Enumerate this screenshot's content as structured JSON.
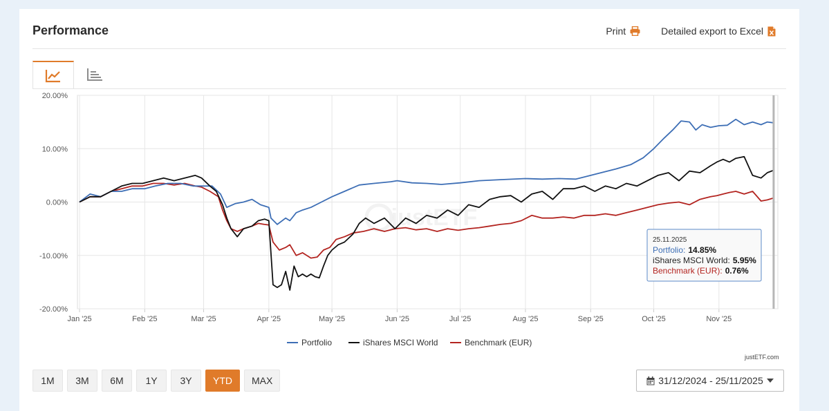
{
  "header": {
    "title": "Performance",
    "print_label": "Print",
    "export_label": "Detailed export to Excel"
  },
  "ranges": [
    "1M",
    "3M",
    "6M",
    "1Y",
    "3Y",
    "YTD",
    "MAX"
  ],
  "active_range": "YTD",
  "date_range": "31/12/2024 - 25/11/2025",
  "credit": "justETF.com",
  "watermark": "justETF",
  "colors": {
    "accent": "#e07b2a",
    "portfolio": "#3d6eb5",
    "msci": "#111111",
    "benchmark": "#b32420"
  },
  "tooltip": {
    "date": "25.11.2025",
    "rows": [
      {
        "label": "Portfolio:",
        "value": "14.85%"
      },
      {
        "label": "iShares MSCI World:",
        "value": "5.95%"
      },
      {
        "label": "Benchmark (EUR):",
        "value": "0.76%"
      }
    ]
  },
  "chart_data": {
    "type": "line",
    "title": "",
    "xlabel": "",
    "ylabel": "",
    "ylim": [
      -20,
      20
    ],
    "y_ticks": [
      "20.00%",
      "10.00%",
      "0.00%",
      "-10.00%",
      "-20.00%"
    ],
    "y_tick_values": [
      20,
      10,
      0,
      -10,
      -20
    ],
    "x_ticks": [
      "Jan '25",
      "Feb '25",
      "Mar '25",
      "Apr '25",
      "May '25",
      "Jun '25",
      "Jul '25",
      "Aug '25",
      "Sep '25",
      "Oct '25",
      "Nov '25"
    ],
    "x_tick_days": [
      0,
      31,
      59,
      90,
      120,
      151,
      181,
      212,
      243,
      273,
      304
    ],
    "xlim": [
      -1,
      332
    ],
    "legend_position": "bottom",
    "series": [
      {
        "name": "Portfolio",
        "color": "#3d6eb5",
        "x": [
          0,
          5,
          10,
          15,
          20,
          25,
          31,
          36,
          42,
          48,
          54,
          58,
          63,
          67,
          70,
          74,
          78,
          82,
          86,
          90,
          91,
          94,
          98,
          100,
          103,
          106,
          110,
          115,
          120,
          126,
          133,
          140,
          148,
          151,
          158,
          165,
          172,
          181,
          190,
          200,
          212,
          220,
          228,
          236,
          243,
          248,
          255,
          262,
          268,
          273,
          278,
          282,
          286,
          290,
          293,
          296,
          300,
          304,
          308,
          312,
          316,
          320,
          324,
          327,
          330
        ],
        "y": [
          0,
          1.5,
          1,
          2,
          2,
          2.5,
          2.5,
          3,
          3.5,
          3.5,
          3,
          3,
          3,
          1.5,
          -1,
          -0.3,
          0,
          0.5,
          -0.5,
          -1,
          -3,
          -4.2,
          -3,
          -3.5,
          -2,
          -1.5,
          -1,
          0,
          1,
          2,
          3.2,
          3.5,
          3.8,
          4,
          3.6,
          3.5,
          3.3,
          3.6,
          4,
          4.2,
          4.4,
          4.3,
          4.4,
          4.3,
          5,
          5.5,
          6.2,
          7,
          8.3,
          10,
          12,
          13.5,
          15.2,
          15,
          13.5,
          14.5,
          14,
          14.3,
          14.4,
          15.5,
          14.5,
          15,
          14.5,
          15,
          14.85
        ]
      },
      {
        "name": "iShares MSCI World",
        "color": "#111111",
        "x": [
          0,
          5,
          10,
          15,
          20,
          25,
          30,
          35,
          40,
          45,
          50,
          55,
          58,
          62,
          65,
          68,
          70,
          72,
          75,
          78,
          82,
          85,
          88,
          90,
          92,
          94,
          96,
          98,
          100,
          102,
          104,
          106,
          108,
          110,
          112,
          114,
          116,
          118,
          120,
          123,
          126,
          130,
          133,
          136,
          140,
          145,
          150,
          155,
          160,
          165,
          170,
          175,
          180,
          185,
          190,
          195,
          200,
          205,
          210,
          215,
          220,
          225,
          230,
          235,
          240,
          245,
          250,
          255,
          260,
          265,
          270,
          275,
          280,
          285,
          290,
          295,
          300,
          303,
          306,
          309,
          312,
          316,
          320,
          324,
          327,
          330
        ],
        "y": [
          0,
          1,
          1,
          2,
          3,
          3.5,
          3.5,
          4,
          4.5,
          4,
          4.5,
          5,
          4.5,
          3,
          2,
          -0.5,
          -3,
          -5,
          -6.5,
          -5,
          -4.5,
          -3.5,
          -3.2,
          -3.5,
          -15.5,
          -16,
          -15.5,
          -13,
          -16.5,
          -12,
          -14,
          -13.5,
          -14,
          -13.5,
          -14,
          -14.2,
          -12,
          -10,
          -9,
          -8,
          -7.5,
          -6,
          -4,
          -3,
          -4,
          -3,
          -5,
          -3,
          -4,
          -2.5,
          -3,
          -1.5,
          -2.5,
          -0.5,
          -1,
          0.5,
          1,
          1.2,
          0,
          1.5,
          2,
          0.5,
          2.5,
          2.5,
          3,
          2,
          3,
          2.5,
          3.5,
          3,
          4,
          5,
          5.5,
          4,
          5.8,
          5.5,
          6.8,
          7.5,
          8,
          7.5,
          8.2,
          8.5,
          5,
          4.5,
          5.5,
          5.95
        ]
      },
      {
        "name": "Benchmark (EUR)",
        "color": "#b32420",
        "x": [
          0,
          5,
          10,
          15,
          20,
          25,
          30,
          35,
          40,
          45,
          50,
          55,
          58,
          62,
          66,
          68,
          70,
          72,
          75,
          78,
          82,
          85,
          88,
          90,
          92,
          95,
          98,
          100,
          103,
          106,
          110,
          113,
          116,
          119,
          122,
          126,
          130,
          135,
          140,
          145,
          150,
          155,
          160,
          165,
          170,
          175,
          180,
          185,
          190,
          195,
          200,
          205,
          210,
          215,
          220,
          225,
          230,
          235,
          240,
          245,
          250,
          255,
          260,
          265,
          270,
          275,
          280,
          285,
          290,
          295,
          300,
          303,
          306,
          309,
          312,
          316,
          320,
          324,
          327,
          330
        ],
        "y": [
          0,
          1,
          1,
          2,
          2.5,
          3,
          3,
          3.5,
          3.5,
          3.2,
          3.5,
          3,
          2.8,
          2,
          1,
          -1.5,
          -3.5,
          -5,
          -5.5,
          -5,
          -4.5,
          -4,
          -4.2,
          -4.3,
          -7.5,
          -9,
          -8.5,
          -8,
          -10,
          -9.5,
          -10.5,
          -10.3,
          -9,
          -8.5,
          -7,
          -6.5,
          -5.8,
          -5.5,
          -5,
          -5.5,
          -5,
          -4.8,
          -5.2,
          -5,
          -5.5,
          -5,
          -5.3,
          -5,
          -4.8,
          -4.5,
          -4.2,
          -4,
          -3.5,
          -2.5,
          -3,
          -3,
          -2.8,
          -3,
          -2.5,
          -2.5,
          -2.2,
          -2.5,
          -2,
          -1.5,
          -1,
          -0.5,
          -0.2,
          0,
          -0.5,
          0.5,
          1,
          1.2,
          1.5,
          1.8,
          2,
          1.5,
          2,
          0.2,
          0.4,
          0.76
        ]
      }
    ]
  }
}
